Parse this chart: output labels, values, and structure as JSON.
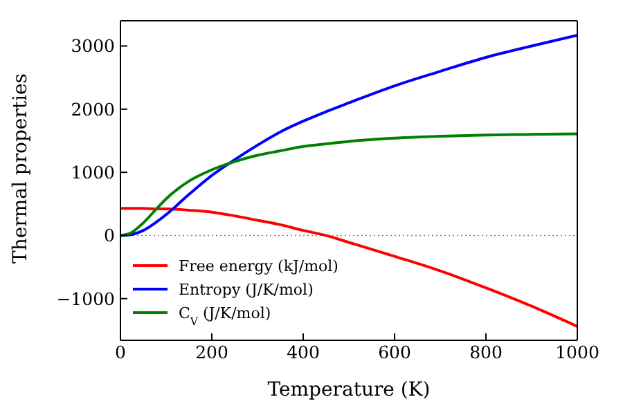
{
  "chart_data": {
    "type": "line",
    "xlabel": "Temperature (K)",
    "ylabel": "Thermal properties",
    "x": [
      0,
      20,
      50,
      80,
      100,
      150,
      200,
      250,
      300,
      350,
      400,
      450,
      500,
      600,
      700,
      800,
      900,
      1000
    ],
    "series": [
      {
        "name": "Free energy (kJ/mol)",
        "color": "#ff0000",
        "values": [
          430,
          430,
          430,
          420,
          420,
          400,
          370,
          310,
          240,
          170,
          80,
          0,
          -110,
          -330,
          -560,
          -830,
          -1120,
          -1440
        ]
      },
      {
        "name": "Entropy (J/K/mol)",
        "color": "#0000ff",
        "values": [
          0,
          10,
          80,
          220,
          330,
          650,
          950,
          1200,
          1430,
          1640,
          1810,
          1960,
          2100,
          2370,
          2600,
          2820,
          3000,
          3170
        ]
      },
      {
        "name": "C$_{V}$ (J/K/mol)",
        "color": "#008000",
        "values": [
          0,
          30,
          200,
          430,
          580,
          860,
          1040,
          1170,
          1270,
          1340,
          1410,
          1450,
          1490,
          1540,
          1570,
          1590,
          1600,
          1610
        ]
      }
    ],
    "xlim": [
      0,
      1000
    ],
    "xticks": [
      0,
      200,
      400,
      600,
      800,
      1000
    ],
    "ylim": [
      -1660,
      3400
    ],
    "yticks": [
      -1000,
      0,
      1000,
      2000,
      3000
    ],
    "ref_lines": [
      {
        "axis": "y",
        "value": 0,
        "color": "#808080",
        "line_style": "dotted"
      }
    ],
    "legend": "bottom left",
    "marker": "none",
    "line_style": "solid",
    "grid": false
  }
}
